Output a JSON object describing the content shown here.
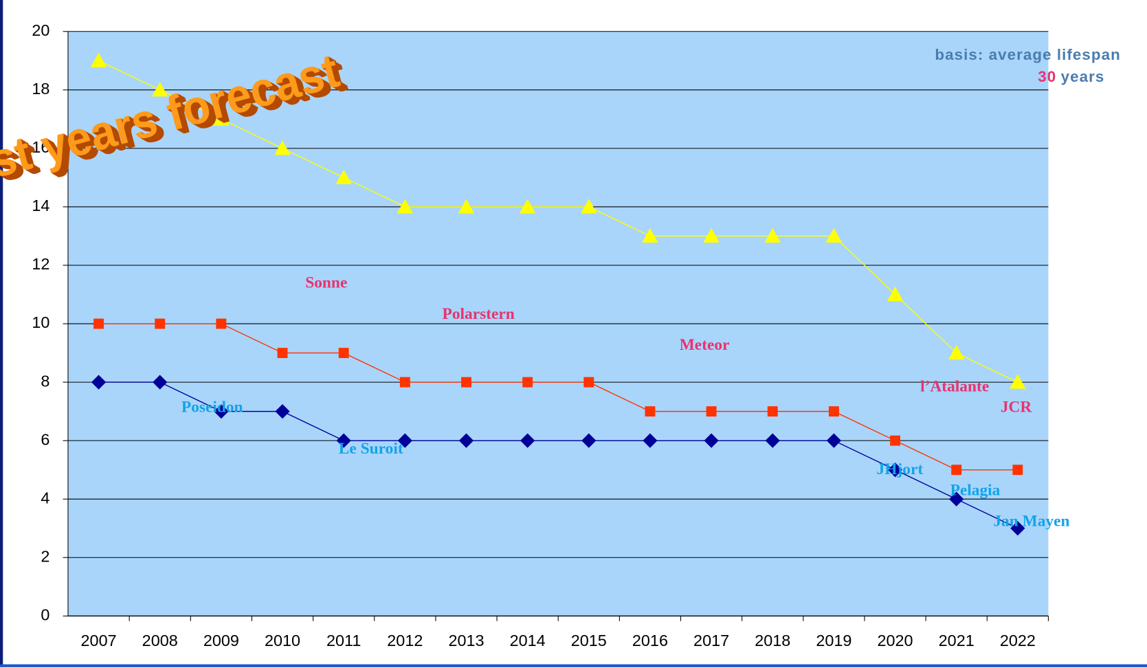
{
  "chart_data": {
    "type": "line",
    "title": "st years forecast",
    "note": "basis: average lifespan",
    "note_number": "30",
    "note_unit": "years",
    "categories": [
      "2007",
      "2008",
      "2009",
      "2010",
      "2011",
      "2012",
      "2013",
      "2014",
      "2015",
      "2016",
      "2017",
      "2018",
      "2019",
      "2020",
      "2021",
      "2022"
    ],
    "series": [
      {
        "color": "#ffff00",
        "marker": "triangle",
        "values": [
          19,
          18,
          17,
          16,
          15,
          14,
          14,
          14,
          14,
          13,
          13,
          13,
          13,
          11,
          9,
          8
        ]
      },
      {
        "color": "#ff3300",
        "marker": "square",
        "values": [
          10,
          10,
          10,
          9,
          9,
          8,
          8,
          8,
          8,
          7,
          7,
          7,
          7,
          6,
          5,
          5
        ]
      },
      {
        "color": "#000099",
        "marker": "diamond",
        "values": [
          8,
          8,
          7,
          7,
          6,
          6,
          6,
          6,
          6,
          6,
          6,
          6,
          6,
          5,
          4,
          3
        ]
      }
    ],
    "ylim": [
      0,
      20
    ],
    "yticks": [
      0,
      2,
      4,
      6,
      8,
      10,
      12,
      14,
      16,
      18,
      20
    ],
    "grid": true,
    "annotations": [
      {
        "text": "Sonne",
        "color": "#e8336e"
      },
      {
        "text": "Polarstern",
        "color": "#e8336e"
      },
      {
        "text": "Meteor",
        "color": "#e8336e"
      },
      {
        "text": "l’Atalante",
        "color": "#e8336e"
      },
      {
        "text": "JCR",
        "color": "#e8336e"
      },
      {
        "text": "Poseidon",
        "color": "#12a4e8"
      },
      {
        "text": "Le Suroit",
        "color": "#12a4e8"
      },
      {
        "text": "JHjort",
        "color": "#12a4e8"
      },
      {
        "text": "Pelagia",
        "color": "#12a4e8"
      },
      {
        "text": "Jan Mayen",
        "color": "#12a4e8"
      }
    ]
  }
}
